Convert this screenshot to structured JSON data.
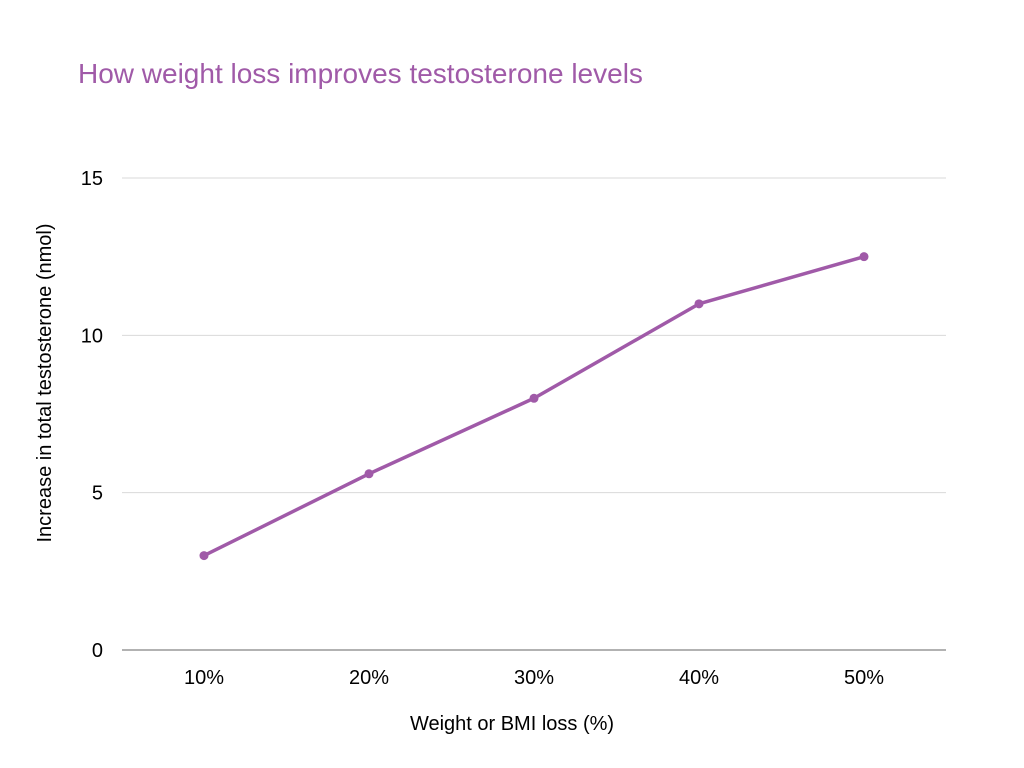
{
  "chart_data": {
    "type": "line",
    "title": "How weight loss improves testosterone levels",
    "xlabel": "Weight or BMI loss (%)",
    "ylabel": "Increase in total testosterone (nmol)",
    "categories": [
      "10%",
      "20%",
      "30%",
      "40%",
      "50%"
    ],
    "series": [
      {
        "values": [
          3,
          5.6,
          8,
          11,
          12.5
        ]
      }
    ],
    "ylim": [
      0,
      15
    ],
    "yticks": [
      0,
      5,
      10,
      15
    ],
    "ytick_labels": [
      "0",
      "5",
      "10",
      "15"
    ],
    "grid": true,
    "legend": "none",
    "colors": {
      "title": "#a05aa8",
      "series": "#a05aa8",
      "grid": "#d9d9d9",
      "axis": "#999999"
    }
  }
}
